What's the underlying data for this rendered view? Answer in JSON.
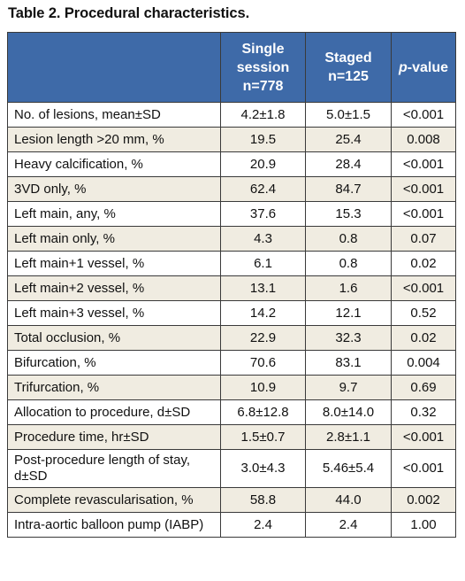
{
  "title": "Table 2. Procedural characteristics.",
  "header": {
    "col1_line1": "Single",
    "col1_line2": "session",
    "col1_line3": "n=778",
    "col2_line1": "Staged",
    "col2_line2": "n=125",
    "col3_italic": "p",
    "col3_rest": "-value"
  },
  "rows": [
    {
      "label": "No. of lesions, mean±SD",
      "single": "4.2±1.8",
      "staged": "5.0±1.5",
      "p": "<0.001"
    },
    {
      "label": "Lesion length >20 mm, %",
      "single": "19.5",
      "staged": "25.4",
      "p": "0.008"
    },
    {
      "label": "Heavy calcification, %",
      "single": "20.9",
      "staged": "28.4",
      "p": "<0.001"
    },
    {
      "label": "3VD only, %",
      "single": "62.4",
      "staged": "84.7",
      "p": "<0.001"
    },
    {
      "label": "Left main, any, %",
      "single": "37.6",
      "staged": "15.3",
      "p": "<0.001"
    },
    {
      "label": "Left main only, %",
      "single": "4.3",
      "staged": "0.8",
      "p": "0.07"
    },
    {
      "label": "Left main+1 vessel, %",
      "single": "6.1",
      "staged": "0.8",
      "p": "0.02"
    },
    {
      "label": "Left main+2 vessel, %",
      "single": "13.1",
      "staged": "1.6",
      "p": "<0.001"
    },
    {
      "label": "Left main+3 vessel, %",
      "single": "14.2",
      "staged": "12.1",
      "p": "0.52"
    },
    {
      "label": "Total occlusion, %",
      "single": "22.9",
      "staged": "32.3",
      "p": "0.02"
    },
    {
      "label": "Bifurcation, %",
      "single": "70.6",
      "staged": "83.1",
      "p": "0.004"
    },
    {
      "label": "Trifurcation, %",
      "single": "10.9",
      "staged": "9.7",
      "p": "0.69"
    },
    {
      "label": "Allocation to procedure, d±SD",
      "single": "6.8±12.8",
      "staged": "8.0±14.0",
      "p": "0.32"
    },
    {
      "label": "Procedure time, hr±SD",
      "single": "1.5±0.7",
      "staged": "2.8±1.1",
      "p": "<0.001"
    },
    {
      "label": "Post-procedure length of stay, d±SD",
      "single": "3.0±4.3",
      "staged": "5.46±5.4",
      "p": "<0.001"
    },
    {
      "label": "Complete revascularisation, %",
      "single": "58.8",
      "staged": "44.0",
      "p": "0.002"
    },
    {
      "label": "Intra-aortic balloon pump (IABP)",
      "single": "2.4",
      "staged": "2.4",
      "p": "1.00"
    }
  ]
}
